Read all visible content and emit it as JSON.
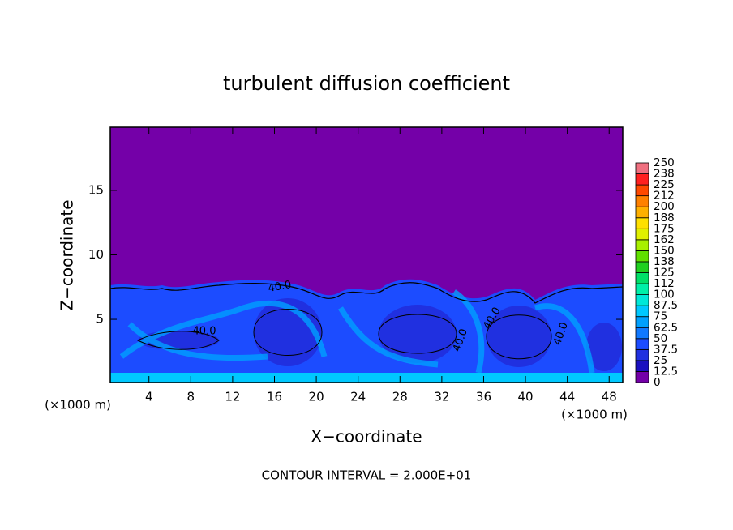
{
  "chart_data": {
    "type": "contour",
    "title": "turbulent diffusion coefficient",
    "x_label": "X−coordinate",
    "y_label": "Z−coordinate",
    "x_unit_labels": [
      "(×1000 m)",
      "(×1000 m)"
    ],
    "xlim": [
      0.3,
      49.3
    ],
    "xticks": [
      4,
      8,
      12,
      16,
      20,
      24,
      28,
      32,
      36,
      40,
      44,
      48
    ],
    "ylim": [
      0.1,
      19.9
    ],
    "yticks": [
      5,
      10,
      15
    ],
    "colorbar": {
      "levels": [
        0,
        12.5,
        25,
        37.5,
        50,
        62.5,
        75,
        87.5,
        100,
        {
          "value": 112.5,
          "label": "112"
        },
        125,
        {
          "value": 137.5,
          "label": "138"
        },
        150,
        {
          "value": 162.5,
          "label": "162"
        },
        175,
        {
          "value": 187.5,
          "label": "188"
        },
        200,
        {
          "value": 212.5,
          "label": "212"
        },
        225,
        {
          "value": 237.5,
          "label": "238"
        },
        250
      ],
      "colors": [
        "#7400a8",
        "#1a10c0",
        "#2030e0",
        "#1c4cff",
        "#1078ff",
        "#00a0ff",
        "#00c8ff",
        "#00e8d8",
        "#00f0a8",
        "#00e068",
        "#20d020",
        "#60e000",
        "#a8f000",
        "#e0f000",
        "#ffe000",
        "#ffb000",
        "#ff8000",
        "#ff4800",
        "#ff2020",
        "#f07080"
      ]
    },
    "contour_labels": [
      "40.0",
      "40.0",
      "40.0",
      "40.0",
      "40.0"
    ],
    "footer": "CONTOUR INTERVAL = 2.000E+01"
  }
}
